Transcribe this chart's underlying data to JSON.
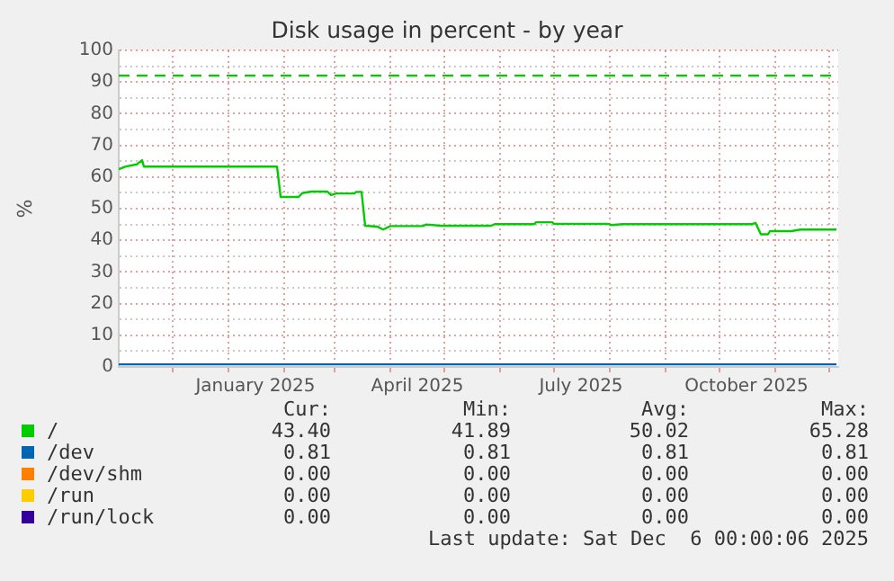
{
  "chart_data": {
    "type": "line",
    "title": "Disk usage in percent - by year",
    "ylabel": "%",
    "xlim": [
      "2024-11-01",
      "2025-12-06"
    ],
    "xticks": [
      {
        "value": "2024-12-01",
        "label": null
      },
      {
        "value": "2025-01-01",
        "label": null
      },
      {
        "value": "2025-01-16",
        "label": "January 2025"
      },
      {
        "value": "2025-02-01",
        "label": null
      },
      {
        "value": "2025-03-01",
        "label": null
      },
      {
        "value": "2025-04-01",
        "label": null
      },
      {
        "value": "2025-04-16",
        "label": "April 2025"
      },
      {
        "value": "2025-05-01",
        "label": null
      },
      {
        "value": "2025-06-01",
        "label": null
      },
      {
        "value": "2025-07-01",
        "label": null
      },
      {
        "value": "2025-07-16",
        "label": "July 2025"
      },
      {
        "value": "2025-08-01",
        "label": null
      },
      {
        "value": "2025-09-01",
        "label": null
      },
      {
        "value": "2025-10-01",
        "label": null
      },
      {
        "value": "2025-10-16",
        "label": "October 2025"
      },
      {
        "value": "2025-11-01",
        "label": null
      },
      {
        "value": "2025-12-01",
        "label": null
      }
    ],
    "ylim": [
      0,
      100
    ],
    "yticks": [
      0,
      {
        "value": 5,
        "label": null
      },
      10,
      {
        "value": 15,
        "label": null
      },
      20,
      {
        "value": 25,
        "label": null
      },
      30,
      {
        "value": 35,
        "label": null
      },
      40,
      {
        "value": 45,
        "label": null
      },
      50,
      {
        "value": 55,
        "label": null
      },
      60,
      {
        "value": 65,
        "label": null
      },
      70,
      {
        "value": 75,
        "label": null
      },
      80,
      {
        "value": 85,
        "label": null
      },
      90,
      {
        "value": 95,
        "label": null
      },
      100
    ],
    "grid": true,
    "legend": "bottom",
    "marker": "none",
    "line_style": "solid",
    "ref_lines": [
      {
        "axis": "y",
        "value": 92,
        "label": null,
        "color": "#00cc00",
        "line_style": "dashed"
      }
    ],
    "series": [
      {
        "name": "/",
        "color": "#00cc00",
        "x": [
          "2024-11-01",
          "2024-11-05",
          "2024-11-11",
          "2024-11-14",
          "2024-11-15",
          "2025-01-28",
          "2025-01-30",
          "2025-02-09",
          "2025-02-11",
          "2025-02-16",
          "2025-02-25",
          "2025-02-27",
          "2025-03-02",
          "2025-03-12",
          "2025-03-13",
          "2025-03-16",
          "2025-03-18",
          "2025-03-25",
          "2025-03-28",
          "2025-04-01",
          "2025-04-19",
          "2025-04-21",
          "2025-04-29",
          "2025-05-27",
          "2025-05-29",
          "2025-06-20",
          "2025-06-21",
          "2025-06-30",
          "2025-07-01",
          "2025-07-31",
          "2025-08-02",
          "2025-08-08",
          "2025-10-19",
          "2025-10-21",
          "2025-10-24",
          "2025-10-28",
          "2025-10-29",
          "2025-11-10",
          "2025-11-15",
          "2025-12-05"
        ],
        "values": [
          62.5,
          63.3,
          64.0,
          65.3,
          63.3,
          63.3,
          53.7,
          53.7,
          54.9,
          55.4,
          55.4,
          54.3,
          54.8,
          54.8,
          55.3,
          55.3,
          44.6,
          44.3,
          43.4,
          44.5,
          44.5,
          45.0,
          44.6,
          44.6,
          45.1,
          45.1,
          45.7,
          45.7,
          45.2,
          45.2,
          44.8,
          45.1,
          45.1,
          45.5,
          41.9,
          41.9,
          42.9,
          42.9,
          43.4,
          43.4
        ]
      },
      {
        "name": "/dev",
        "color": "#0066b3",
        "x": [
          "2024-11-01",
          "2025-12-05"
        ],
        "values": [
          0.81,
          0.81
        ]
      },
      {
        "name": "/dev/shm",
        "color": "#ff8000",
        "values": [
          null,
          null
        ]
      },
      {
        "name": "/run",
        "color": "#ffcc00",
        "values": [
          null,
          null
        ]
      },
      {
        "name": "/run/lock",
        "color": "#330099",
        "values": [
          null,
          null
        ]
      }
    ],
    "annotations": [
      "Cur:",
      "Min:",
      "Avg:",
      "Max:",
      "43.40",
      "41.89",
      "50.02",
      "65.28",
      "0.81",
      "0.81",
      "0.81",
      "0.81",
      "0.00",
      "0.00",
      "0.00",
      "0.00",
      "0.00",
      "0.00",
      "0.00",
      "0.00",
      "0.00",
      "0.00",
      "0.00",
      "0.00",
      "Last update: Sat Dec  6 00:00:06 2025"
    ]
  }
}
